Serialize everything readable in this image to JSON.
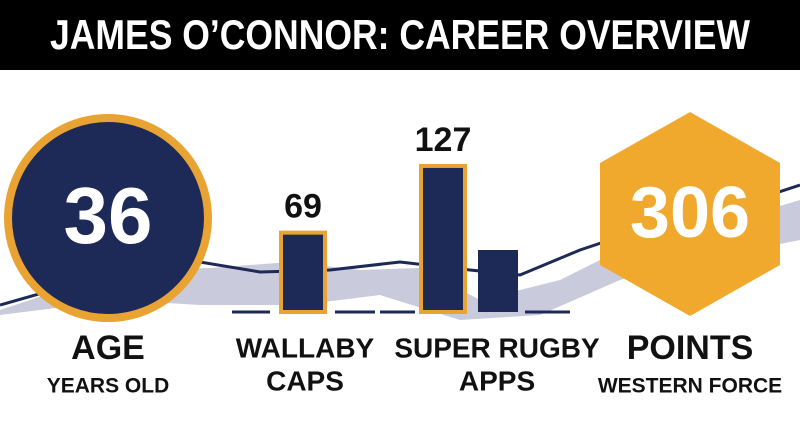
{
  "header": {
    "title": "JAMES O’CONNOR: CAREER OVERVIEW"
  },
  "stats": [
    {
      "value": 36,
      "label_lines": [
        "AGE",
        "YEARS OLD"
      ]
    },
    {
      "value": 69,
      "label_lines": [
        "WALLABY",
        "CAPS"
      ]
    },
    {
      "value": 127,
      "label_lines": [
        "SUPER RUGBY",
        "APPS"
      ]
    },
    {
      "value": 306,
      "label_lines": [
        "POINTS",
        "WESTERN FORCE"
      ]
    }
  ]
}
